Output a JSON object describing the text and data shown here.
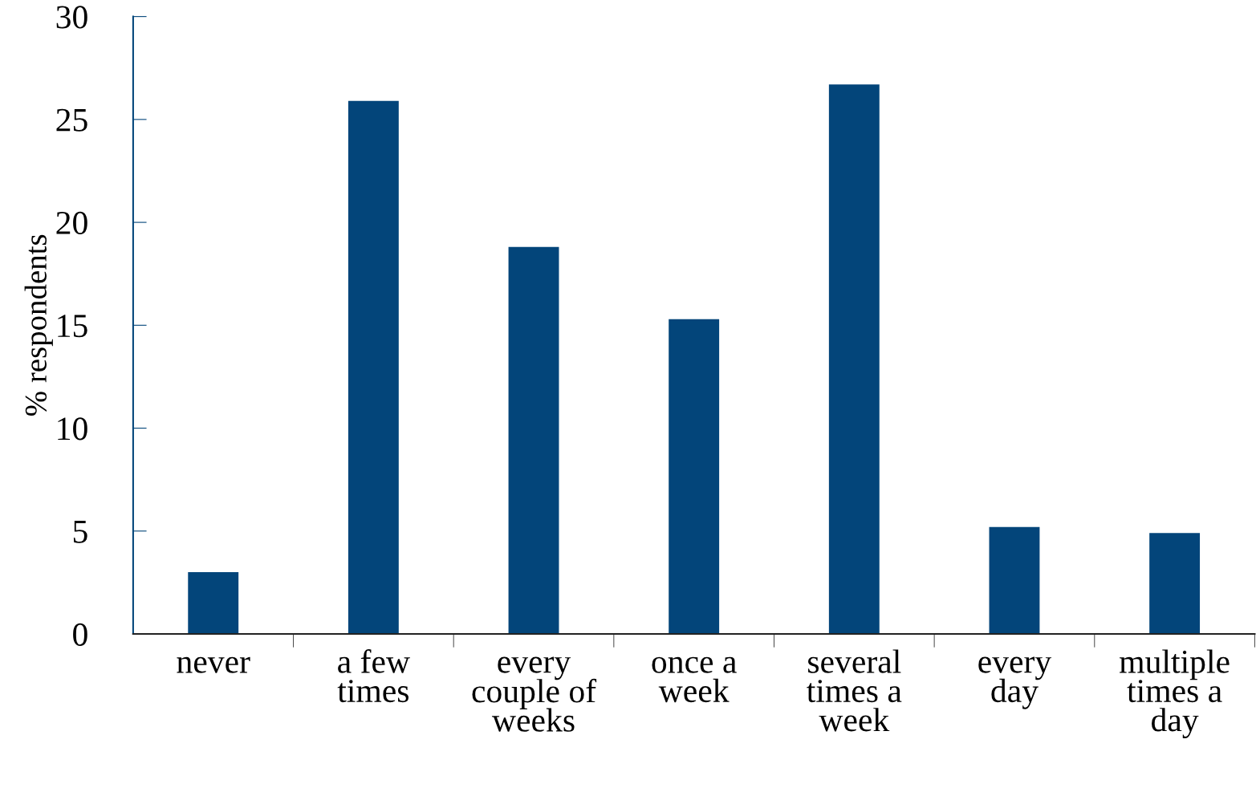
{
  "chart_data": {
    "type": "bar",
    "ylabel": "% respondents",
    "categories": [
      "never",
      "a few\ntimes",
      "every\ncouple of\nweeks",
      "once a\nweek",
      "several\ntimes a\nweek",
      "every\nday",
      "multiple\ntimes a\nday"
    ],
    "values": [
      3.0,
      25.9,
      18.8,
      15.3,
      26.7,
      5.2,
      4.9
    ],
    "color": "#03457a",
    "ylim": [
      0,
      30
    ],
    "yticks": [
      0,
      5,
      10,
      15,
      20,
      25,
      30
    ],
    "grid": false,
    "legend": false
  }
}
